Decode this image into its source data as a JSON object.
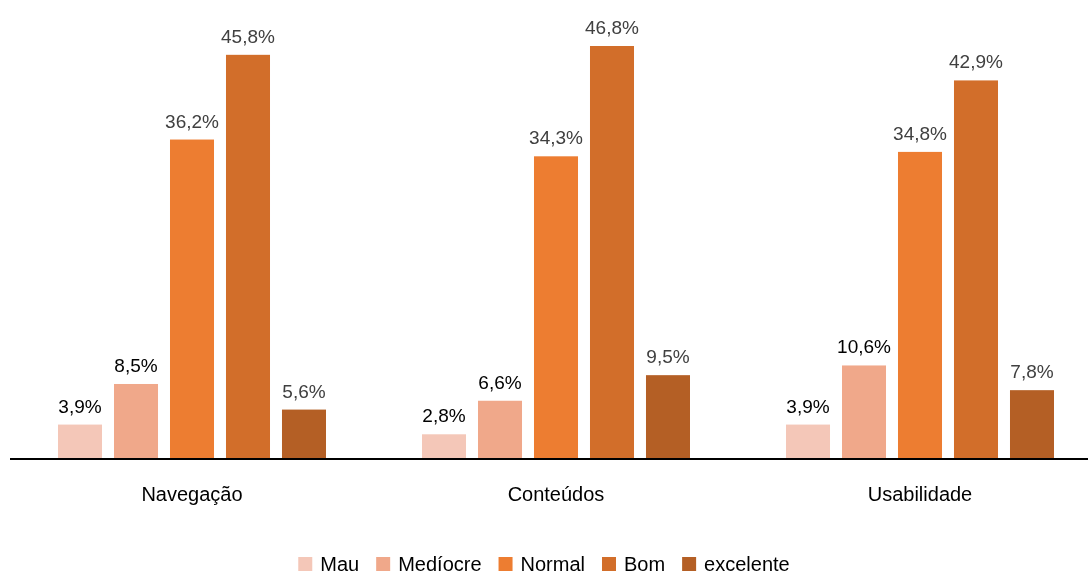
{
  "chart_data": {
    "type": "bar",
    "categories": [
      "Navegação",
      "Conteúdos",
      "Usabilidade"
    ],
    "series": [
      {
        "name": "Mau",
        "color": "#f4c7b8",
        "values": [
          3.9,
          2.8,
          3.9
        ],
        "value_labels": [
          "3,9%",
          "2,8%",
          "3,9%"
        ]
      },
      {
        "name": "Medíocre",
        "color": "#f0a88a",
        "values": [
          8.5,
          6.6,
          10.6
        ],
        "value_labels": [
          "8,5%",
          "6,6%",
          "10,6%"
        ]
      },
      {
        "name": "Normal",
        "color": "#ed7d31",
        "values": [
          36.2,
          34.3,
          34.8
        ],
        "value_labels": [
          "36,2%",
          "34,3%",
          "34,8%"
        ]
      },
      {
        "name": "Bom",
        "color": "#d26e2a",
        "values": [
          45.8,
          46.8,
          42.9
        ],
        "value_labels": [
          "45,8%",
          "46,8%",
          "42,9%"
        ]
      },
      {
        "name": "excelente",
        "color": "#b45f25",
        "values": [
          5.6,
          9.5,
          7.8
        ],
        "value_labels": [
          "5,6%",
          "9,5%",
          "7,8%"
        ]
      }
    ],
    "legend": "bottom"
  }
}
